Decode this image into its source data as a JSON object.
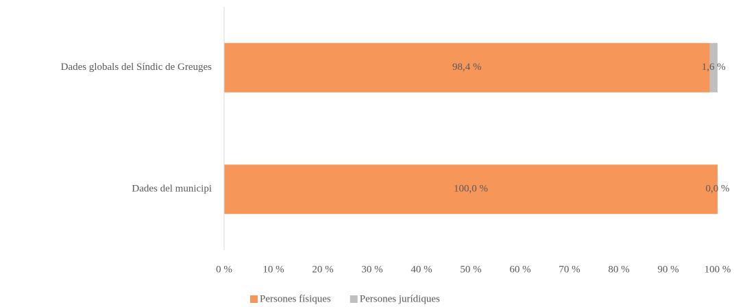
{
  "chart_data": {
    "type": "stacked_barh",
    "categories": [
      "Dades globals del Síndic de Greuges",
      "Dades del municipi"
    ],
    "series": [
      {
        "name": "Persones físiques",
        "color": "#f79659",
        "values": [
          98.4,
          100.0
        ],
        "value_labels": [
          "98,4 %",
          "100,0 %"
        ]
      },
      {
        "name": "Persones jurídiques",
        "color": "#bfbfbf",
        "values": [
          1.6,
          0.0
        ],
        "value_labels": [
          "1,6 %",
          "0,0 %"
        ]
      }
    ],
    "xlim": [
      0,
      100
    ],
    "xticks": [
      {
        "value": 0,
        "label": "0 %"
      },
      {
        "value": 10,
        "label": "10 %"
      },
      {
        "value": 20,
        "label": "20 %"
      },
      {
        "value": 30,
        "label": "30 %"
      },
      {
        "value": 40,
        "label": "40 %"
      },
      {
        "value": 50,
        "label": "50 %"
      },
      {
        "value": 60,
        "label": "60 %"
      },
      {
        "value": 70,
        "label": "70 %"
      },
      {
        "value": 80,
        "label": "80 %"
      },
      {
        "value": 90,
        "label": "90 %"
      },
      {
        "value": 100,
        "label": "100 %"
      }
    ],
    "legend": "bottom"
  }
}
